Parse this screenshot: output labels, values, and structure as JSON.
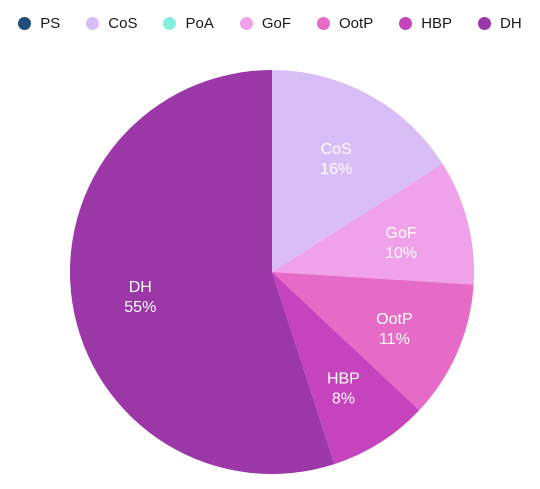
{
  "chart_data": {
    "type": "pie",
    "legend_position": "top",
    "series": [
      {
        "name": "PS",
        "value": 0,
        "label": "",
        "color": "#1f4e79"
      },
      {
        "name": "CoS",
        "value": 16,
        "label": "16%",
        "color": "#d9bdf7"
      },
      {
        "name": "PoA",
        "value": 0,
        "label": "",
        "color": "#86eedd"
      },
      {
        "name": "GoF",
        "value": 10,
        "label": "10%",
        "color": "#efa2ea"
      },
      {
        "name": "OotP",
        "value": 11,
        "label": "11%",
        "color": "#e66bc6"
      },
      {
        "name": "HBP",
        "value": 8,
        "label": "8%",
        "color": "#c544bd"
      },
      {
        "name": "DH",
        "value": 55,
        "label": "55%",
        "color": "#9b37a6"
      }
    ]
  }
}
